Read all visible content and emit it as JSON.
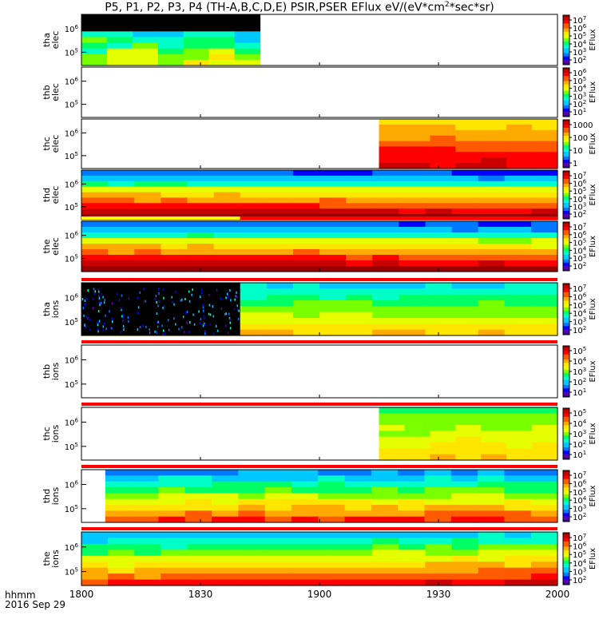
{
  "title": "P5, P1, P2, P3, P4 (TH-A,B,C,D,E) PSIR,PSER EFlux eV/(eV*cm",
  "title_sup": "2",
  "title_end": "*sec*sr)",
  "footer": {
    "time_label": "hhmm",
    "date_label": "2016 Sep 29"
  },
  "colors": {
    "rainbow": [
      "#30007a",
      "#5a00b4",
      "#0000ff",
      "#0078ff",
      "#00c8ff",
      "#00ffc8",
      "#00ff64",
      "#78ff00",
      "#e6ff00",
      "#ffe600",
      "#ffaa00",
      "#ff5a00",
      "#ff0000",
      "#c80000",
      "#960000"
    ],
    "strip_red": "#ff0000",
    "strip_yellow": "#ffff00",
    "sparse_fill": "#000000"
  },
  "chart_data": {
    "type": "heatmap",
    "x_axis": {
      "range": [
        "1800",
        "2000"
      ],
      "ticks": [
        "1800",
        "1830",
        "1900",
        "1930",
        "2000"
      ]
    },
    "panels": [
      {
        "label": [
          "tha",
          "elec"
        ],
        "y_ticks": [
          {
            "base": "10",
            "exp": "6"
          },
          {
            "base": "10",
            "exp": "5"
          }
        ],
        "colorbar": {
          "label": "EFlux",
          "ticks": [
            {
              "base": "10",
              "exp": "7"
            },
            {
              "base": "10",
              "exp": "6"
            },
            {
              "base": "10",
              "exp": "5"
            },
            {
              "base": "10",
              "exp": "4"
            },
            {
              "base": "10",
              "exp": "3"
            },
            {
              "base": "10",
              "exp": "2"
            }
          ]
        },
        "data_window": [
          "1800",
          "1845"
        ],
        "pattern": "sparse",
        "strip": "none"
      },
      {
        "label": [
          "thb",
          "elec"
        ],
        "y_ticks": [
          {
            "base": "10",
            "exp": "6"
          },
          {
            "base": "10",
            "exp": "5"
          }
        ],
        "colorbar": {
          "label": "EFlux",
          "ticks": [
            {
              "base": "10",
              "exp": "6"
            },
            {
              "base": "10",
              "exp": "5"
            },
            {
              "base": "10",
              "exp": "4"
            },
            {
              "base": "10",
              "exp": "3"
            },
            {
              "base": "10",
              "exp": "2"
            },
            {
              "base": "10",
              "exp": "1"
            }
          ]
        },
        "data_window": null,
        "pattern": "empty",
        "strip": "none"
      },
      {
        "label": [
          "thc",
          "elec"
        ],
        "y_ticks": [
          {
            "base": "10",
            "exp": "6"
          },
          {
            "base": "10",
            "exp": "5"
          }
        ],
        "colorbar": {
          "label": "EFlux",
          "ticks": [
            {
              "base": "",
              "exp": "1000"
            },
            {
              "base": "",
              "exp": "100"
            },
            {
              "base": "",
              "exp": "10"
            },
            {
              "base": "",
              "exp": "1"
            }
          ]
        },
        "data_window": [
          "1915",
          "2000"
        ],
        "pattern": "warm",
        "strip": "none"
      },
      {
        "label": [
          "thd",
          "elec"
        ],
        "y_ticks": [
          {
            "base": "10",
            "exp": "6"
          },
          {
            "base": "10",
            "exp": "5"
          }
        ],
        "colorbar": {
          "label": "EFlux",
          "ticks": [
            {
              "base": "10",
              "exp": "7"
            },
            {
              "base": "10",
              "exp": "6"
            },
            {
              "base": "10",
              "exp": "5"
            },
            {
              "base": "10",
              "exp": "4"
            },
            {
              "base": "10",
              "exp": "3"
            },
            {
              "base": "10",
              "exp": "2"
            }
          ]
        },
        "data_window": [
          "1800",
          "2000"
        ],
        "pattern": "hot",
        "strip": "none"
      },
      {
        "label": [
          "the",
          "elec"
        ],
        "y_ticks": [
          {
            "base": "10",
            "exp": "6"
          },
          {
            "base": "10",
            "exp": "5"
          }
        ],
        "colorbar": {
          "label": "EFlux",
          "ticks": [
            {
              "base": "10",
              "exp": "7"
            },
            {
              "base": "10",
              "exp": "6"
            },
            {
              "base": "10",
              "exp": "5"
            },
            {
              "base": "10",
              "exp": "4"
            },
            {
              "base": "10",
              "exp": "3"
            },
            {
              "base": "10",
              "exp": "2"
            }
          ]
        },
        "data_window": [
          "1800",
          "2000"
        ],
        "pattern": "hot",
        "strip": "yellow-red"
      },
      {
        "label": [
          "tha",
          "ions"
        ],
        "y_ticks": [
          {
            "base": "10",
            "exp": "6"
          },
          {
            "base": "10",
            "exp": "5"
          }
        ],
        "colorbar": {
          "label": "EFlux",
          "ticks": [
            {
              "base": "10",
              "exp": "7"
            },
            {
              "base": "10",
              "exp": "6"
            },
            {
              "base": "10",
              "exp": "5"
            },
            {
              "base": "10",
              "exp": "4"
            },
            {
              "base": "10",
              "exp": "3"
            },
            {
              "base": "10",
              "exp": "2"
            }
          ]
        },
        "data_window": [
          "1800",
          "2000"
        ],
        "pattern": "ions-a",
        "strip": "red"
      },
      {
        "label": [
          "thb",
          "ions"
        ],
        "y_ticks": [
          {
            "base": "10",
            "exp": "6"
          },
          {
            "base": "10",
            "exp": "5"
          }
        ],
        "colorbar": {
          "label": "EFlux",
          "ticks": [
            {
              "base": "10",
              "exp": "5"
            },
            {
              "base": "10",
              "exp": "4"
            },
            {
              "base": "10",
              "exp": "3"
            },
            {
              "base": "10",
              "exp": "2"
            },
            {
              "base": "10",
              "exp": "1"
            }
          ]
        },
        "data_window": null,
        "pattern": "empty",
        "strip": "red"
      },
      {
        "label": [
          "thc",
          "ions"
        ],
        "y_ticks": [
          {
            "base": "10",
            "exp": "6"
          },
          {
            "base": "10",
            "exp": "5"
          }
        ],
        "colorbar": {
          "label": "EFlux",
          "ticks": [
            {
              "base": "10",
              "exp": "5"
            },
            {
              "base": "10",
              "exp": "4"
            },
            {
              "base": "10",
              "exp": "3"
            },
            {
              "base": "10",
              "exp": "2"
            },
            {
              "base": "10",
              "exp": "1"
            }
          ]
        },
        "data_window": [
          "1915",
          "2000"
        ],
        "pattern": "green",
        "strip": "red"
      },
      {
        "label": [
          "thd",
          "ions"
        ],
        "y_ticks": [
          {
            "base": "10",
            "exp": "6"
          },
          {
            "base": "10",
            "exp": "5"
          }
        ],
        "colorbar": {
          "label": "EFlux",
          "ticks": [
            {
              "base": "10",
              "exp": "7"
            },
            {
              "base": "10",
              "exp": "6"
            },
            {
              "base": "10",
              "exp": "5"
            },
            {
              "base": "10",
              "exp": "4"
            },
            {
              "base": "10",
              "exp": "3"
            },
            {
              "base": "10",
              "exp": "2"
            }
          ]
        },
        "data_window": [
          "1806",
          "2000"
        ],
        "pattern": "ions-d",
        "strip": "red"
      },
      {
        "label": [
          "the",
          "ions"
        ],
        "y_ticks": [
          {
            "base": "10",
            "exp": "6"
          },
          {
            "base": "10",
            "exp": "5"
          }
        ],
        "colorbar": {
          "label": "EFlux",
          "ticks": [
            {
              "base": "10",
              "exp": "7"
            },
            {
              "base": "10",
              "exp": "6"
            },
            {
              "base": "10",
              "exp": "5"
            },
            {
              "base": "10",
              "exp": "4"
            },
            {
              "base": "10",
              "exp": "3"
            },
            {
              "base": "10",
              "exp": "2"
            }
          ]
        },
        "data_window": [
          "1800",
          "2000"
        ],
        "pattern": "ions-e",
        "strip": "red"
      }
    ]
  }
}
